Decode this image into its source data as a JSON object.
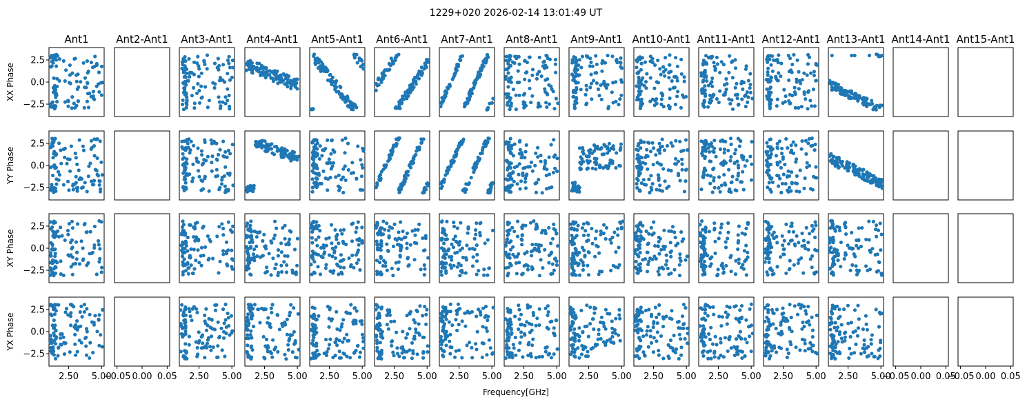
{
  "figure": {
    "suptitle": "1229+020 2026-02-14 13:01:49 UT",
    "xlabel": "Frequency[GHz]"
  },
  "colors": {
    "points": "#1f77b4",
    "frame": "#000000",
    "background": "#ffffff"
  },
  "chart_data": {
    "type": "scatter",
    "layout": "grid 4 rows x 15 columns, shared y axis per row, shared x axis per column",
    "columns": [
      "Ant1",
      "Ant2-Ant1",
      "Ant3-Ant1",
      "Ant4-Ant1",
      "Ant5-Ant1",
      "Ant6-Ant1",
      "Ant7-Ant1",
      "Ant8-Ant1",
      "Ant9-Ant1",
      "Ant10-Ant1",
      "Ant11-Ant1",
      "Ant12-Ant1",
      "Ant13-Ant1",
      "Ant14-Ant1",
      "Ant15-Ant1"
    ],
    "rows": [
      {
        "ylabel": "XX Phase"
      },
      {
        "ylabel": "YY Phase"
      },
      {
        "ylabel": "XY Phase"
      },
      {
        "ylabel": "YX Phase"
      }
    ],
    "ylim": [
      -3.9,
      3.9
    ],
    "yticks": [
      -2.5,
      0.0,
      2.5
    ],
    "ytick_labels": [
      "−2.5",
      "0.0",
      "2.5"
    ],
    "xlim_data": [
      1.0,
      5.2
    ],
    "xticks_data": [
      2.5,
      5.0
    ],
    "xtick_labels_data": [
      "2.50",
      "5.00"
    ],
    "xlim_empty": [
      -0.055,
      0.055
    ],
    "xticks_empty": [
      -0.05,
      0.0,
      0.05
    ],
    "xtick_labels_empty": [
      "−0.05",
      "0.00",
      "0.05"
    ],
    "empty_columns": [
      1,
      13,
      14
    ],
    "points_per_panel": 110,
    "patterns": [
      [
        "wrapLow",
        "empty",
        "bandLow",
        "clusterPos",
        "lineNeg",
        "linePos",
        "wrapLine",
        "uniform",
        "bandLow",
        "bandLow",
        "bandLow",
        "bandLow",
        "lineNeg2",
        "empty",
        "empty"
      ],
      [
        "wrapLow",
        "empty",
        "bandLow",
        "bandNeg",
        "bandLow",
        "wrapLine",
        "wrapLine",
        "uniform",
        "bandLowNeg",
        "bandLow",
        "bandLow",
        "bandLow",
        "lineNeg3",
        "empty",
        "empty"
      ],
      [
        "uniform",
        "empty",
        "uniform",
        "uniform",
        "uniform",
        "uniform",
        "uniform",
        "uniform",
        "uniform",
        "uniform",
        "uniform",
        "uniform",
        "uniform",
        "empty",
        "empty"
      ],
      [
        "uniform",
        "empty",
        "uniform",
        "uniform",
        "uniform",
        "uniform",
        "uniform",
        "uniform",
        "uniform",
        "uniform",
        "uniform",
        "uniform",
        "uniform",
        "empty",
        "empty"
      ]
    ]
  }
}
